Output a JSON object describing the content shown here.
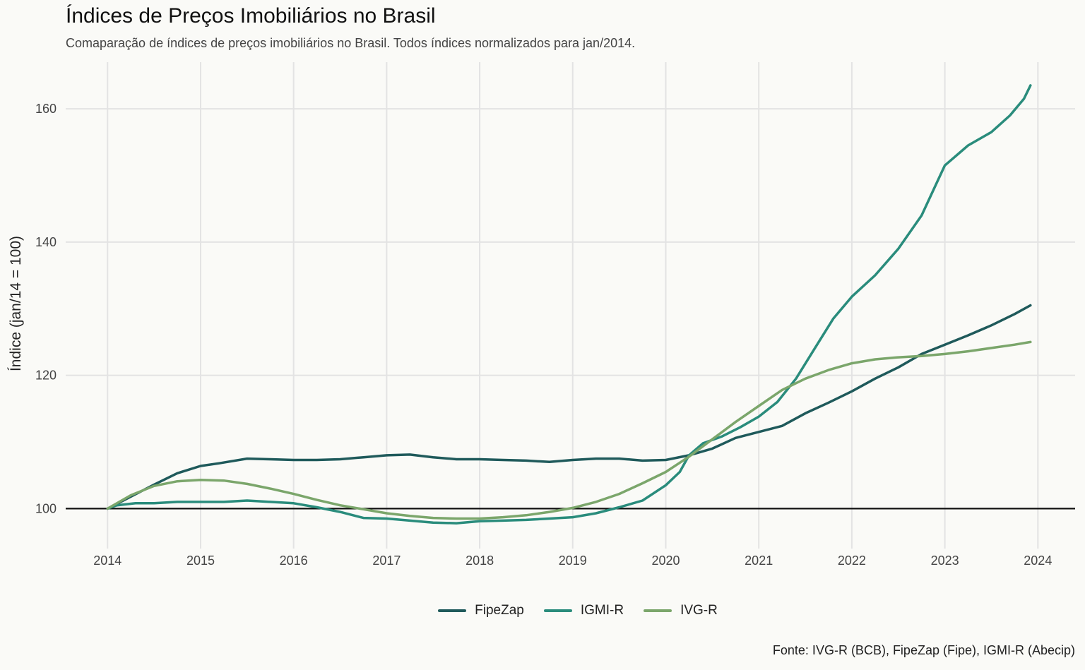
{
  "chart_data": {
    "type": "line",
    "title": "Índices de Preços Imobiliários no Brasil",
    "subtitle": "Comaparação de índices de preços imobiliários no Brasil. Todos índices normalizados para jan/2014.",
    "caption": "Fonte: IVG-R (BCB), FipeZap (Fipe), IGMI-R (Abecip)",
    "ylabel": "Índice (jan/14 = 100)",
    "xlabel": "",
    "x_ticks": [
      "2014",
      "2015",
      "2016",
      "2017",
      "2018",
      "2019",
      "2020",
      "2021",
      "2022",
      "2023",
      "2024"
    ],
    "y_ticks": [
      "100",
      "120",
      "140",
      "160"
    ],
    "xlim": [
      2013.55,
      2024.4
    ],
    "ylim": [
      94,
      167
    ],
    "reference_line": 100,
    "grid": true,
    "legend_position": "bottom",
    "series": [
      {
        "name": "FipeZap",
        "color": "#1f5a5b",
        "points": [
          [
            2014.0,
            100.0
          ],
          [
            2014.25,
            101.8
          ],
          [
            2014.5,
            103.6
          ],
          [
            2014.75,
            105.3
          ],
          [
            2015.0,
            106.4
          ],
          [
            2015.2,
            106.8
          ],
          [
            2015.5,
            107.5
          ],
          [
            2015.75,
            107.4
          ],
          [
            2016.0,
            107.3
          ],
          [
            2016.25,
            107.3
          ],
          [
            2016.5,
            107.4
          ],
          [
            2016.75,
            107.7
          ],
          [
            2017.0,
            108.0
          ],
          [
            2017.25,
            108.1
          ],
          [
            2017.5,
            107.7
          ],
          [
            2017.75,
            107.4
          ],
          [
            2018.0,
            107.4
          ],
          [
            2018.25,
            107.3
          ],
          [
            2018.5,
            107.2
          ],
          [
            2018.75,
            107.0
          ],
          [
            2019.0,
            107.3
          ],
          [
            2019.25,
            107.5
          ],
          [
            2019.5,
            107.5
          ],
          [
            2019.75,
            107.2
          ],
          [
            2020.0,
            107.3
          ],
          [
            2020.25,
            108.0
          ],
          [
            2020.5,
            109.0
          ],
          [
            2020.75,
            110.6
          ],
          [
            2021.0,
            111.5
          ],
          [
            2021.25,
            112.4
          ],
          [
            2021.5,
            114.3
          ],
          [
            2021.75,
            115.9
          ],
          [
            2022.0,
            117.6
          ],
          [
            2022.25,
            119.5
          ],
          [
            2022.5,
            121.2
          ],
          [
            2022.75,
            123.2
          ],
          [
            2023.0,
            124.6
          ],
          [
            2023.25,
            126.0
          ],
          [
            2023.5,
            127.5
          ],
          [
            2023.75,
            129.2
          ],
          [
            2023.92,
            130.5
          ]
        ]
      },
      {
        "name": "IGMI-R",
        "color": "#2a8c7c",
        "points": [
          [
            2014.0,
            100.0
          ],
          [
            2014.1,
            100.5
          ],
          [
            2014.3,
            100.8
          ],
          [
            2014.5,
            100.8
          ],
          [
            2014.75,
            101.0
          ],
          [
            2015.0,
            101.0
          ],
          [
            2015.25,
            101.0
          ],
          [
            2015.5,
            101.2
          ],
          [
            2015.75,
            101.0
          ],
          [
            2016.0,
            100.8
          ],
          [
            2016.25,
            100.2
          ],
          [
            2016.5,
            99.5
          ],
          [
            2016.75,
            98.6
          ],
          [
            2017.0,
            98.5
          ],
          [
            2017.25,
            98.2
          ],
          [
            2017.5,
            97.9
          ],
          [
            2017.75,
            97.8
          ],
          [
            2018.0,
            98.1
          ],
          [
            2018.25,
            98.2
          ],
          [
            2018.5,
            98.3
          ],
          [
            2018.75,
            98.5
          ],
          [
            2019.0,
            98.7
          ],
          [
            2019.25,
            99.3
          ],
          [
            2019.5,
            100.2
          ],
          [
            2019.75,
            101.2
          ],
          [
            2020.0,
            103.5
          ],
          [
            2020.15,
            105.5
          ],
          [
            2020.25,
            108.0
          ],
          [
            2020.4,
            109.8
          ],
          [
            2020.6,
            110.8
          ],
          [
            2020.8,
            112.2
          ],
          [
            2021.0,
            113.8
          ],
          [
            2021.2,
            116.0
          ],
          [
            2021.4,
            119.5
          ],
          [
            2021.6,
            124.0
          ],
          [
            2021.8,
            128.5
          ],
          [
            2022.0,
            131.8
          ],
          [
            2022.25,
            135.0
          ],
          [
            2022.5,
            139.0
          ],
          [
            2022.75,
            144.0
          ],
          [
            2022.9,
            148.5
          ],
          [
            2023.0,
            151.5
          ],
          [
            2023.25,
            154.5
          ],
          [
            2023.5,
            156.5
          ],
          [
            2023.7,
            159.0
          ],
          [
            2023.85,
            161.5
          ],
          [
            2023.92,
            163.5
          ]
        ]
      },
      {
        "name": "IVG-R",
        "color": "#7ba66b",
        "points": [
          [
            2014.0,
            100.0
          ],
          [
            2014.25,
            102.0
          ],
          [
            2014.5,
            103.4
          ],
          [
            2014.75,
            104.1
          ],
          [
            2015.0,
            104.3
          ],
          [
            2015.25,
            104.2
          ],
          [
            2015.5,
            103.7
          ],
          [
            2015.75,
            103.0
          ],
          [
            2016.0,
            102.2
          ],
          [
            2016.25,
            101.3
          ],
          [
            2016.5,
            100.5
          ],
          [
            2016.75,
            99.9
          ],
          [
            2017.0,
            99.3
          ],
          [
            2017.25,
            98.9
          ],
          [
            2017.5,
            98.6
          ],
          [
            2017.75,
            98.5
          ],
          [
            2018.0,
            98.5
          ],
          [
            2018.25,
            98.7
          ],
          [
            2018.5,
            99.0
          ],
          [
            2018.75,
            99.5
          ],
          [
            2019.0,
            100.1
          ],
          [
            2019.25,
            101.0
          ],
          [
            2019.5,
            102.2
          ],
          [
            2019.75,
            103.8
          ],
          [
            2020.0,
            105.5
          ],
          [
            2020.25,
            107.8
          ],
          [
            2020.5,
            110.4
          ],
          [
            2020.75,
            113.0
          ],
          [
            2021.0,
            115.4
          ],
          [
            2021.25,
            117.8
          ],
          [
            2021.5,
            119.5
          ],
          [
            2021.75,
            120.8
          ],
          [
            2022.0,
            121.8
          ],
          [
            2022.25,
            122.4
          ],
          [
            2022.5,
            122.7
          ],
          [
            2022.75,
            122.9
          ],
          [
            2023.0,
            123.2
          ],
          [
            2023.25,
            123.6
          ],
          [
            2023.5,
            124.1
          ],
          [
            2023.75,
            124.6
          ],
          [
            2023.92,
            125.0
          ]
        ]
      }
    ]
  }
}
